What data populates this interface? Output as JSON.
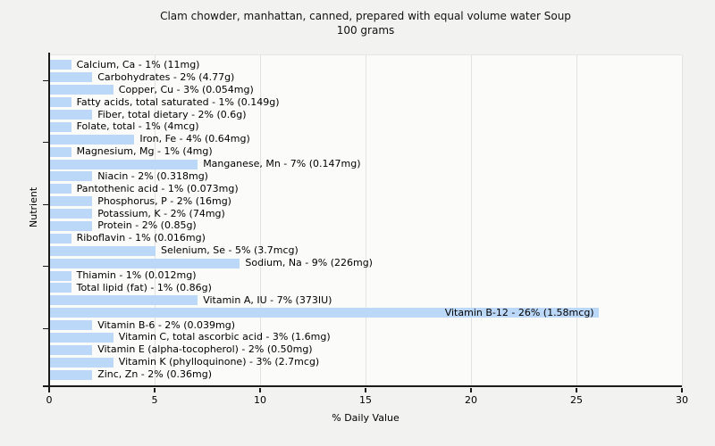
{
  "title": {
    "line1": "Clam chowder, manhattan, canned, prepared with equal volume water Soup",
    "line2": "100 grams"
  },
  "chart_data": {
    "type": "bar",
    "orientation": "horizontal",
    "title": "Clam chowder, manhattan, canned, prepared with equal volume water Soup",
    "subtitle": "100 grams",
    "xlabel": "% Daily Value",
    "ylabel": "Nutrient",
    "xlim": [
      0,
      30
    ],
    "xticks": [
      0,
      5,
      10,
      15,
      20,
      25,
      30
    ],
    "grid": "vertical gridlines at xticks",
    "legend": "none",
    "bar_color": "#bcd8f8",
    "background_color": "#f2f2f1",
    "plot_background_color": "#fbfbfa",
    "gridline_color": "#e2e2e0",
    "axis_color": "#1a1a1a",
    "text_color": "#000000",
    "categories": [
      "Calcium, Ca",
      "Carbohydrates",
      "Copper, Cu",
      "Fatty acids, total saturated",
      "Fiber, total dietary",
      "Folate, total",
      "Iron, Fe",
      "Magnesium, Mg",
      "Manganese, Mn",
      "Niacin",
      "Pantothenic acid",
      "Phosphorus, P",
      "Potassium, K",
      "Protein",
      "Riboflavin",
      "Selenium, Se",
      "Sodium, Na",
      "Thiamin",
      "Total lipid (fat)",
      "Vitamin A, IU",
      "Vitamin B-12",
      "Vitamin B-6",
      "Vitamin C, total ascorbic acid",
      "Vitamin E (alpha-tocopherol)",
      "Vitamin K (phylloquinone)",
      "Zinc, Zn"
    ],
    "values": [
      1,
      2,
      3,
      1,
      2,
      1,
      4,
      1,
      7,
      2,
      1,
      2,
      2,
      2,
      1,
      5,
      9,
      1,
      1,
      7,
      26,
      2,
      3,
      2,
      3,
      2
    ],
    "bars": [
      {
        "nutrient": "Calcium, Ca",
        "percent": 1,
        "amount": "11mg",
        "label": "Calcium, Ca - 1% (11mg)",
        "label_inside": false
      },
      {
        "nutrient": "Carbohydrates",
        "percent": 2,
        "amount": "4.77g",
        "label": "Carbohydrates - 2% (4.77g)",
        "label_inside": false
      },
      {
        "nutrient": "Copper, Cu",
        "percent": 3,
        "amount": "0.054mg",
        "label": "Copper, Cu - 3% (0.054mg)",
        "label_inside": false
      },
      {
        "nutrient": "Fatty acids, total saturated",
        "percent": 1,
        "amount": "0.149g",
        "label": "Fatty acids, total saturated - 1% (0.149g)",
        "label_inside": false
      },
      {
        "nutrient": "Fiber, total dietary",
        "percent": 2,
        "amount": "0.6g",
        "label": "Fiber, total dietary - 2% (0.6g)",
        "label_inside": false
      },
      {
        "nutrient": "Folate, total",
        "percent": 1,
        "amount": "4mcg",
        "label": "Folate, total - 1% (4mcg)",
        "label_inside": false
      },
      {
        "nutrient": "Iron, Fe",
        "percent": 4,
        "amount": "0.64mg",
        "label": "Iron, Fe - 4% (0.64mg)",
        "label_inside": false
      },
      {
        "nutrient": "Magnesium, Mg",
        "percent": 1,
        "amount": "4mg",
        "label": "Magnesium, Mg - 1% (4mg)",
        "label_inside": false
      },
      {
        "nutrient": "Manganese, Mn",
        "percent": 7,
        "amount": "0.147mg",
        "label": "Manganese, Mn - 7% (0.147mg)",
        "label_inside": false
      },
      {
        "nutrient": "Niacin",
        "percent": 2,
        "amount": "0.318mg",
        "label": "Niacin - 2% (0.318mg)",
        "label_inside": false
      },
      {
        "nutrient": "Pantothenic acid",
        "percent": 1,
        "amount": "0.073mg",
        "label": "Pantothenic acid - 1% (0.073mg)",
        "label_inside": false
      },
      {
        "nutrient": "Phosphorus, P",
        "percent": 2,
        "amount": "16mg",
        "label": "Phosphorus, P - 2% (16mg)",
        "label_inside": false
      },
      {
        "nutrient": "Potassium, K",
        "percent": 2,
        "amount": "74mg",
        "label": "Potassium, K - 2% (74mg)",
        "label_inside": false
      },
      {
        "nutrient": "Protein",
        "percent": 2,
        "amount": "0.85g",
        "label": "Protein - 2% (0.85g)",
        "label_inside": false
      },
      {
        "nutrient": "Riboflavin",
        "percent": 1,
        "amount": "0.016mg",
        "label": "Riboflavin - 1% (0.016mg)",
        "label_inside": false
      },
      {
        "nutrient": "Selenium, Se",
        "percent": 5,
        "amount": "3.7mcg",
        "label": "Selenium, Se - 5% (3.7mcg)",
        "label_inside": false
      },
      {
        "nutrient": "Sodium, Na",
        "percent": 9,
        "amount": "226mg",
        "label": "Sodium, Na - 9% (226mg)",
        "label_inside": false
      },
      {
        "nutrient": "Thiamin",
        "percent": 1,
        "amount": "0.012mg",
        "label": "Thiamin - 1% (0.012mg)",
        "label_inside": false
      },
      {
        "nutrient": "Total lipid (fat)",
        "percent": 1,
        "amount": "0.86g",
        "label": "Total lipid (fat) - 1% (0.86g)",
        "label_inside": false
      },
      {
        "nutrient": "Vitamin A, IU",
        "percent": 7,
        "amount": "373IU",
        "label": "Vitamin A, IU - 7% (373IU)",
        "label_inside": false
      },
      {
        "nutrient": "Vitamin B-12",
        "percent": 26,
        "amount": "1.58mcg",
        "label": "Vitamin B-12 - 26% (1.58mcg)",
        "label_inside": true
      },
      {
        "nutrient": "Vitamin B-6",
        "percent": 2,
        "amount": "0.039mg",
        "label": "Vitamin B-6 - 2% (0.039mg)",
        "label_inside": false
      },
      {
        "nutrient": "Vitamin C, total ascorbic acid",
        "percent": 3,
        "amount": "1.6mg",
        "label": "Vitamin C, total ascorbic acid - 3% (1.6mg)",
        "label_inside": false
      },
      {
        "nutrient": "Vitamin E (alpha-tocopherol)",
        "percent": 2,
        "amount": "0.50mg",
        "label": "Vitamin E (alpha-tocopherol) - 2% (0.50mg)",
        "label_inside": false
      },
      {
        "nutrient": "Vitamin K (phylloquinone)",
        "percent": 3,
        "amount": "2.7mcg",
        "label": "Vitamin K (phylloquinone) - 3% (2.7mcg)",
        "label_inside": false
      },
      {
        "nutrient": "Zinc, Zn",
        "percent": 2,
        "amount": "0.36mg",
        "label": "Zinc, Zn - 2% (0.36mg)",
        "label_inside": false
      }
    ]
  }
}
